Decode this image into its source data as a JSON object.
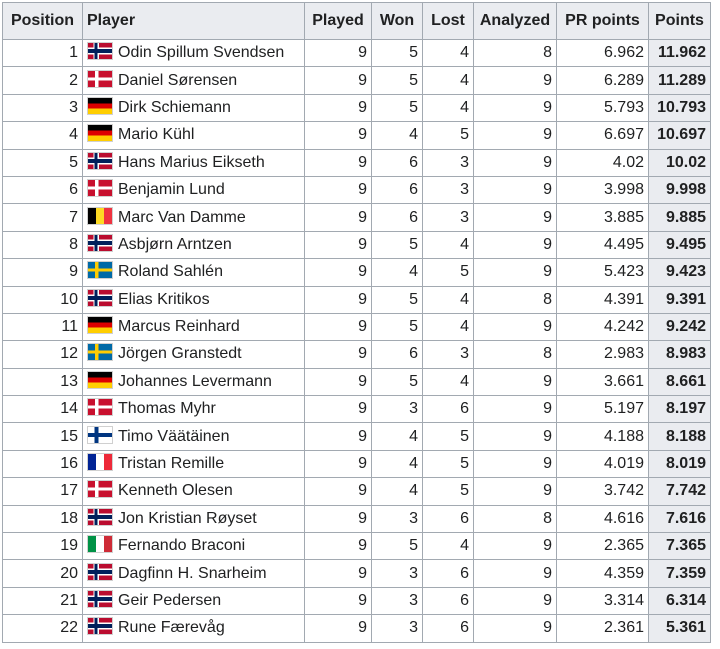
{
  "table": {
    "headers": {
      "position": "Position",
      "player": "Player",
      "played": "Played",
      "won": "Won",
      "lost": "Lost",
      "analyzed": "Analyzed",
      "pr_points": "PR points",
      "points": "Points"
    },
    "rows": [
      {
        "position": "1",
        "flag": "norway-flag",
        "player": "Odin Spillum Svendsen",
        "played": "9",
        "won": "5",
        "lost": "4",
        "analyzed": "8",
        "pr_points": "6.962",
        "points": "11.962"
      },
      {
        "position": "2",
        "flag": "denmark-flag",
        "player": "Daniel Sørensen",
        "played": "9",
        "won": "5",
        "lost": "4",
        "analyzed": "9",
        "pr_points": "6.289",
        "points": "11.289"
      },
      {
        "position": "3",
        "flag": "germany-flag",
        "player": "Dirk Schiemann",
        "played": "9",
        "won": "5",
        "lost": "4",
        "analyzed": "9",
        "pr_points": "5.793",
        "points": "10.793"
      },
      {
        "position": "4",
        "flag": "germany-flag",
        "player": "Mario Kühl",
        "played": "9",
        "won": "4",
        "lost": "5",
        "analyzed": "9",
        "pr_points": "6.697",
        "points": "10.697"
      },
      {
        "position": "5",
        "flag": "norway-flag",
        "player": "Hans Marius Eikseth",
        "played": "9",
        "won": "6",
        "lost": "3",
        "analyzed": "9",
        "pr_points": "4.02",
        "points": "10.02"
      },
      {
        "position": "6",
        "flag": "denmark-flag",
        "player": "Benjamin Lund",
        "played": "9",
        "won": "6",
        "lost": "3",
        "analyzed": "9",
        "pr_points": "3.998",
        "points": "9.998"
      },
      {
        "position": "7",
        "flag": "belgium-flag",
        "player": "Marc Van Damme",
        "played": "9",
        "won": "6",
        "lost": "3",
        "analyzed": "9",
        "pr_points": "3.885",
        "points": "9.885"
      },
      {
        "position": "8",
        "flag": "norway-flag",
        "player": "Asbjørn Arntzen",
        "played": "9",
        "won": "5",
        "lost": "4",
        "analyzed": "9",
        "pr_points": "4.495",
        "points": "9.495"
      },
      {
        "position": "9",
        "flag": "sweden-flag",
        "player": "Roland Sahlén",
        "played": "9",
        "won": "4",
        "lost": "5",
        "analyzed": "9",
        "pr_points": "5.423",
        "points": "9.423"
      },
      {
        "position": "10",
        "flag": "norway-flag",
        "player": "Elias Kritikos",
        "played": "9",
        "won": "5",
        "lost": "4",
        "analyzed": "8",
        "pr_points": "4.391",
        "points": "9.391"
      },
      {
        "position": "11",
        "flag": "germany-flag",
        "player": "Marcus Reinhard",
        "played": "9",
        "won": "5",
        "lost": "4",
        "analyzed": "9",
        "pr_points": "4.242",
        "points": "9.242"
      },
      {
        "position": "12",
        "flag": "sweden-flag",
        "player": "Jörgen Granstedt",
        "played": "9",
        "won": "6",
        "lost": "3",
        "analyzed": "8",
        "pr_points": "2.983",
        "points": "8.983"
      },
      {
        "position": "13",
        "flag": "germany-flag",
        "player": "Johannes Levermann",
        "played": "9",
        "won": "5",
        "lost": "4",
        "analyzed": "9",
        "pr_points": "3.661",
        "points": "8.661"
      },
      {
        "position": "14",
        "flag": "denmark-flag",
        "player": "Thomas Myhr",
        "played": "9",
        "won": "3",
        "lost": "6",
        "analyzed": "9",
        "pr_points": "5.197",
        "points": "8.197"
      },
      {
        "position": "15",
        "flag": "finland-flag",
        "player": "Timo Väätäinen",
        "played": "9",
        "won": "4",
        "lost": "5",
        "analyzed": "9",
        "pr_points": "4.188",
        "points": "8.188"
      },
      {
        "position": "16",
        "flag": "france-flag",
        "player": "Tristan Remille",
        "played": "9",
        "won": "4",
        "lost": "5",
        "analyzed": "9",
        "pr_points": "4.019",
        "points": "8.019"
      },
      {
        "position": "17",
        "flag": "denmark-flag",
        "player": "Kenneth Olesen",
        "played": "9",
        "won": "4",
        "lost": "5",
        "analyzed": "9",
        "pr_points": "3.742",
        "points": "7.742"
      },
      {
        "position": "18",
        "flag": "norway-flag",
        "player": "Jon Kristian Røyset",
        "played": "9",
        "won": "3",
        "lost": "6",
        "analyzed": "8",
        "pr_points": "4.616",
        "points": "7.616"
      },
      {
        "position": "19",
        "flag": "italy-flag",
        "player": "Fernando Braconi",
        "played": "9",
        "won": "5",
        "lost": "4",
        "analyzed": "9",
        "pr_points": "2.365",
        "points": "7.365"
      },
      {
        "position": "20",
        "flag": "norway-flag",
        "player": "Dagfinn H. Snarheim",
        "played": "9",
        "won": "3",
        "lost": "6",
        "analyzed": "9",
        "pr_points": "4.359",
        "points": "7.359"
      },
      {
        "position": "21",
        "flag": "norway-flag",
        "player": "Geir Pedersen",
        "played": "9",
        "won": "3",
        "lost": "6",
        "analyzed": "9",
        "pr_points": "3.314",
        "points": "6.314"
      },
      {
        "position": "22",
        "flag": "norway-flag",
        "player": "Rune Færevåg",
        "played": "9",
        "won": "3",
        "lost": "6",
        "analyzed": "9",
        "pr_points": "2.361",
        "points": "5.361"
      }
    ]
  }
}
